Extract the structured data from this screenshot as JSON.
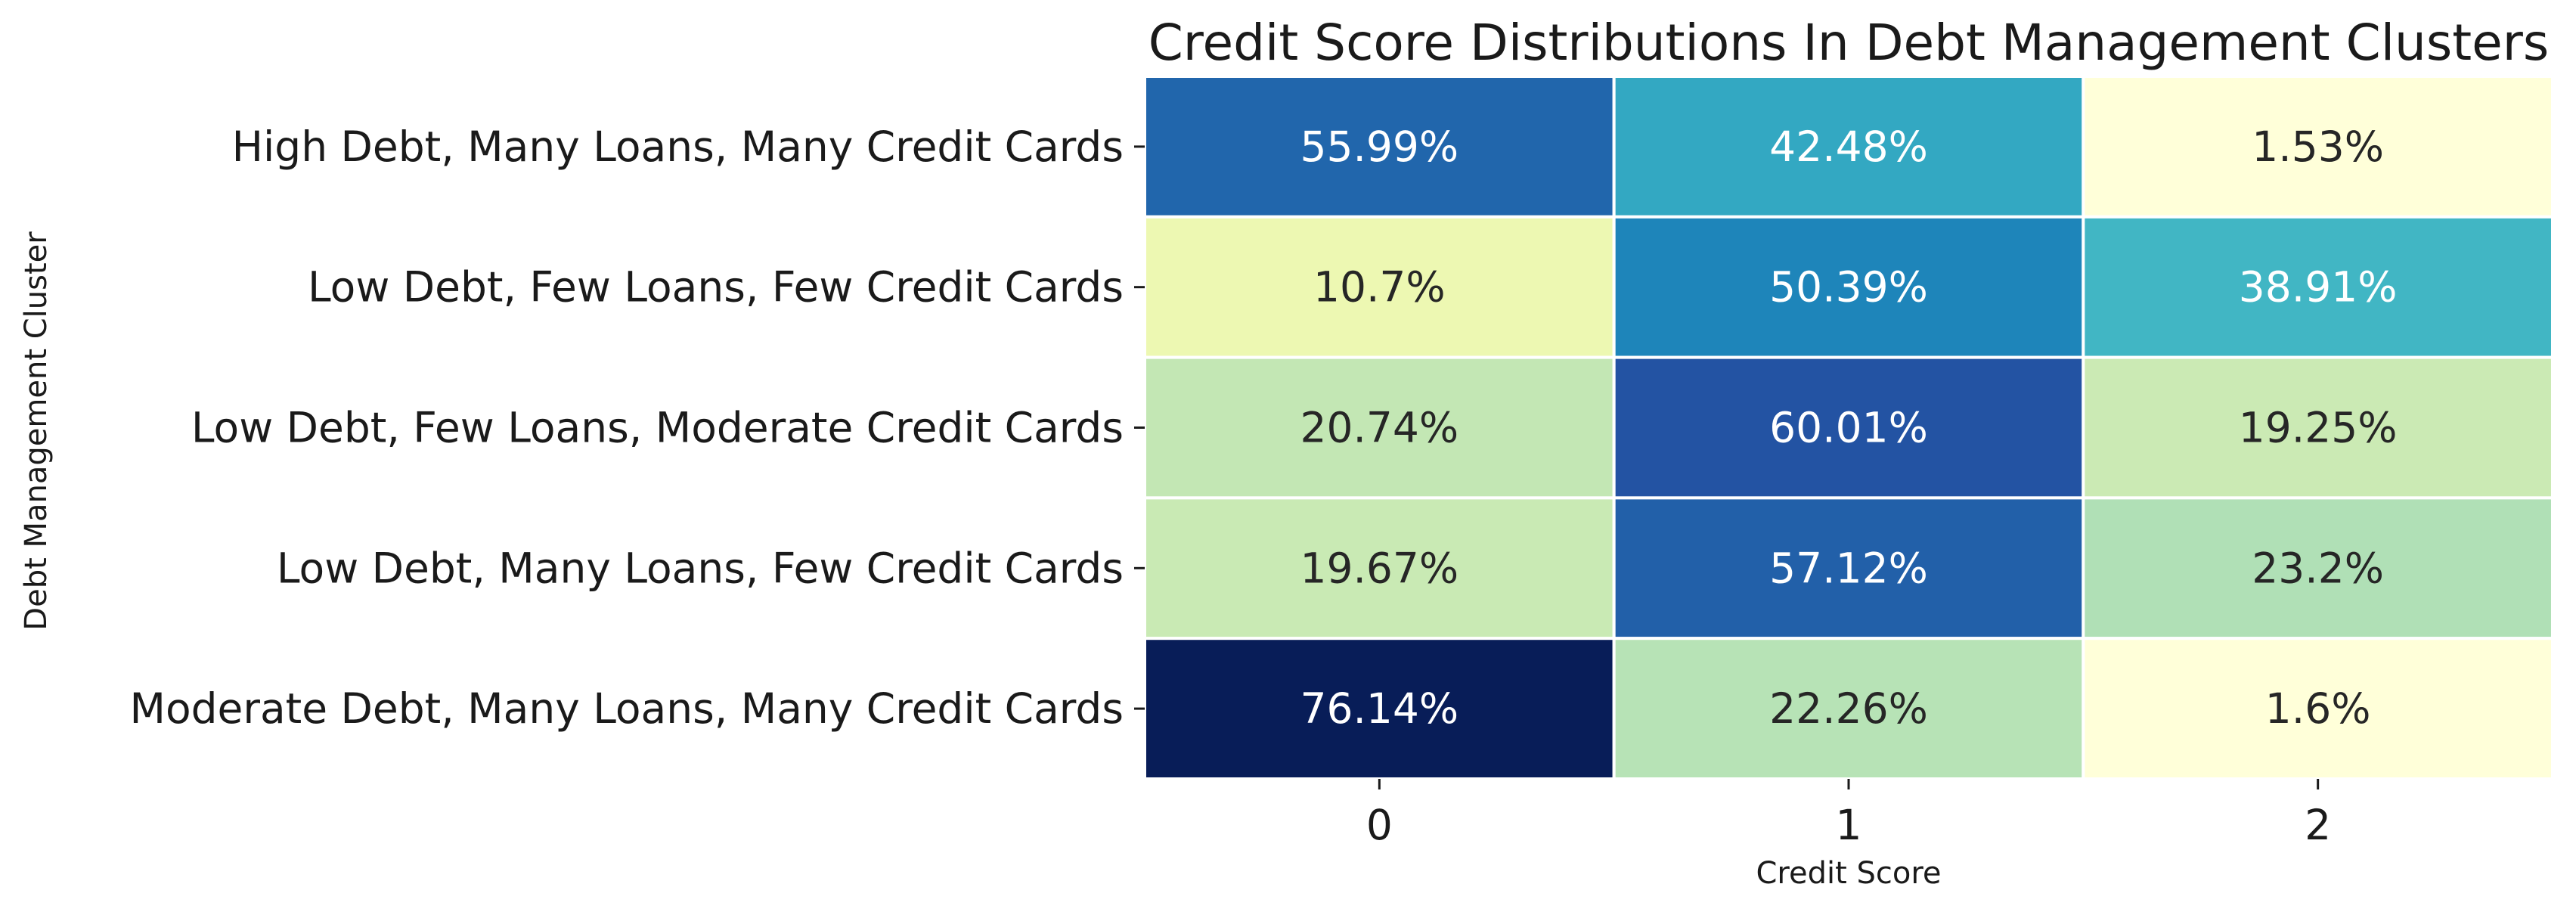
{
  "chart_data": {
    "type": "heatmap",
    "title": "Credit Score Distributions In Debt Management Clusters",
    "xlabel": "Credit Score",
    "ylabel": "Debt Management Cluster",
    "x_categories": [
      "0",
      "1",
      "2"
    ],
    "y_categories": [
      "High Debt, Many Loans, Many Credit Cards",
      "Low Debt, Few Loans, Few Credit Cards",
      "Low Debt, Few Loans, Moderate Credit Cards",
      "Low Debt, Many Loans, Few Credit Cards",
      "Moderate Debt, Many Loans, Many Credit Cards"
    ],
    "values": [
      [
        55.99,
        42.48,
        1.53
      ],
      [
        10.7,
        50.39,
        38.91
      ],
      [
        20.74,
        60.01,
        19.25
      ],
      [
        19.67,
        57.12,
        23.2
      ],
      [
        76.14,
        22.26,
        1.6
      ]
    ],
    "labels": [
      [
        "55.99%",
        "42.48%",
        "1.53%"
      ],
      [
        "10.7%",
        "50.39%",
        "38.91%"
      ],
      [
        "20.74%",
        "60.01%",
        "19.25%"
      ],
      [
        "19.67%",
        "57.12%",
        "23.2%"
      ],
      [
        "76.14%",
        "22.26%",
        "1.6%"
      ]
    ],
    "colormap": "YlGnBu",
    "colorbar": false,
    "grid": false
  }
}
